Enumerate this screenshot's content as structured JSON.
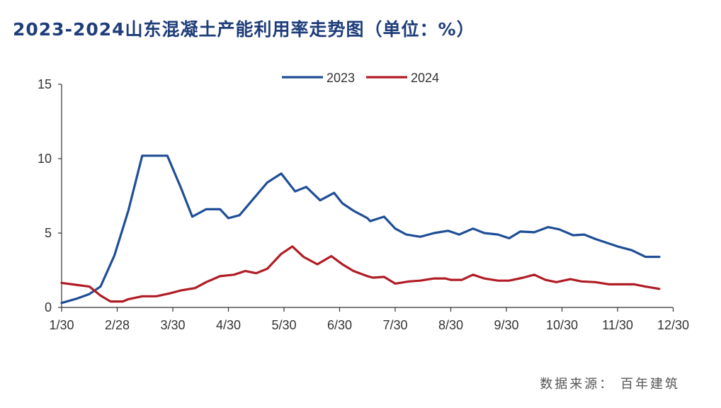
{
  "title": "2023-2024山东混凝土产能利用率走势图（单位：%）",
  "source": "数据来源：  百年建筑",
  "colors": {
    "series_2023": "#1f4e96",
    "series_2024": "#b01c25",
    "axis": "#333333",
    "title": "#1f3d7a"
  },
  "chart_data": {
    "type": "line",
    "x_ticks": [
      "1/30",
      "2/28",
      "3/30",
      "4/30",
      "5/30",
      "6/30",
      "7/30",
      "8/30",
      "9/30",
      "10/30",
      "11/30",
      "12/30"
    ],
    "y_ticks": [
      "0",
      "5",
      "10",
      "15"
    ],
    "ylim": [
      0,
      15
    ],
    "xlim": [
      0,
      11
    ],
    "grid": false,
    "legend_position": "top-center",
    "series": [
      {
        "name": "2023",
        "color": "#1f4e96",
        "points": [
          [
            0,
            0.3
          ],
          [
            0.28,
            0.6
          ],
          [
            0.5,
            0.9
          ],
          [
            0.7,
            1.4
          ],
          [
            0.95,
            3.5
          ],
          [
            1.2,
            6.5
          ],
          [
            1.45,
            10.2
          ],
          [
            1.7,
            10.2
          ],
          [
            1.9,
            10.2
          ],
          [
            2.15,
            8.0
          ],
          [
            2.35,
            6.1
          ],
          [
            2.6,
            6.6
          ],
          [
            2.85,
            6.6
          ],
          [
            3.0,
            6.0
          ],
          [
            3.2,
            6.2
          ],
          [
            3.45,
            7.3
          ],
          [
            3.7,
            8.4
          ],
          [
            3.95,
            9.0
          ],
          [
            4.2,
            7.8
          ],
          [
            4.4,
            8.1
          ],
          [
            4.65,
            7.2
          ],
          [
            4.9,
            7.7
          ],
          [
            5.05,
            7.0
          ],
          [
            5.25,
            6.5
          ],
          [
            5.5,
            6.0
          ],
          [
            5.55,
            5.8
          ],
          [
            5.8,
            6.1
          ],
          [
            6.0,
            5.3
          ],
          [
            6.2,
            4.9
          ],
          [
            6.45,
            4.75
          ],
          [
            6.7,
            5.0
          ],
          [
            6.95,
            5.15
          ],
          [
            7.15,
            4.9
          ],
          [
            7.4,
            5.3
          ],
          [
            7.6,
            5.0
          ],
          [
            7.85,
            4.9
          ],
          [
            8.05,
            4.65
          ],
          [
            8.25,
            5.1
          ],
          [
            8.5,
            5.05
          ],
          [
            8.75,
            5.4
          ],
          [
            8.95,
            5.25
          ],
          [
            9.2,
            4.85
          ],
          [
            9.4,
            4.9
          ],
          [
            9.6,
            4.6
          ],
          [
            10.0,
            4.1
          ],
          [
            10.25,
            3.85
          ],
          [
            10.5,
            3.4
          ],
          [
            10.75,
            3.4
          ]
        ]
      },
      {
        "name": "2024",
        "color": "#b01c25",
        "points": [
          [
            0,
            1.65
          ],
          [
            0.3,
            1.5
          ],
          [
            0.5,
            1.4
          ],
          [
            0.7,
            0.8
          ],
          [
            0.88,
            0.4
          ],
          [
            1.1,
            0.4
          ],
          [
            1.2,
            0.55
          ],
          [
            1.45,
            0.75
          ],
          [
            1.7,
            0.75
          ],
          [
            1.95,
            0.95
          ],
          [
            2.15,
            1.15
          ],
          [
            2.4,
            1.3
          ],
          [
            2.6,
            1.7
          ],
          [
            2.85,
            2.1
          ],
          [
            3.1,
            2.2
          ],
          [
            3.3,
            2.45
          ],
          [
            3.5,
            2.3
          ],
          [
            3.7,
            2.6
          ],
          [
            3.95,
            3.6
          ],
          [
            4.15,
            4.1
          ],
          [
            4.35,
            3.4
          ],
          [
            4.6,
            2.9
          ],
          [
            4.85,
            3.45
          ],
          [
            5.05,
            2.9
          ],
          [
            5.25,
            2.45
          ],
          [
            5.5,
            2.1
          ],
          [
            5.6,
            2.0
          ],
          [
            5.8,
            2.05
          ],
          [
            6.0,
            1.6
          ],
          [
            6.25,
            1.75
          ],
          [
            6.45,
            1.8
          ],
          [
            6.7,
            1.95
          ],
          [
            6.9,
            1.95
          ],
          [
            7.0,
            1.85
          ],
          [
            7.2,
            1.85
          ],
          [
            7.4,
            2.2
          ],
          [
            7.6,
            1.95
          ],
          [
            7.85,
            1.8
          ],
          [
            8.05,
            1.8
          ],
          [
            8.3,
            2.0
          ],
          [
            8.5,
            2.2
          ],
          [
            8.7,
            1.85
          ],
          [
            8.9,
            1.7
          ],
          [
            9.15,
            1.9
          ],
          [
            9.35,
            1.75
          ],
          [
            9.6,
            1.7
          ],
          [
            9.85,
            1.55
          ],
          [
            10.1,
            1.55
          ],
          [
            10.3,
            1.55
          ],
          [
            10.5,
            1.4
          ],
          [
            10.75,
            1.25
          ]
        ]
      }
    ]
  }
}
